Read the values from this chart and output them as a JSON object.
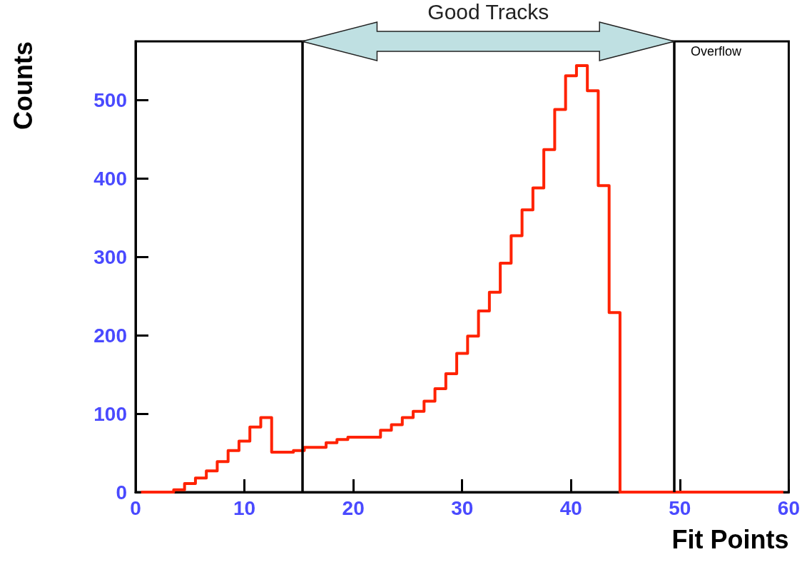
{
  "chart_data": {
    "type": "histogram",
    "xlabel": "Fit Points",
    "ylabel": "Counts",
    "bins": [
      0.5,
      1.5,
      2.5,
      3.5,
      4.5,
      5.5,
      6.5,
      7.5,
      8.5,
      9.5,
      10.5,
      11.5,
      12.5,
      13.5,
      14.5,
      15.5,
      16.5,
      17.5,
      18.5,
      19.5,
      20.5,
      21.5,
      22.5,
      23.5,
      24.5,
      25.5,
      26.5,
      27.5,
      28.5,
      29.5,
      30.5,
      31.5,
      32.5,
      33.5,
      34.5,
      35.5,
      36.5,
      37.5,
      38.5,
      39.5,
      40.5,
      41.5,
      42.5,
      43.5,
      44.5,
      45.5,
      46.5,
      47.5,
      48.5,
      49.5,
      50.5,
      51.5,
      52.5,
      53.5,
      54.5,
      55.5,
      56.5,
      57.5,
      58.5,
      59.5
    ],
    "values": [
      0,
      0,
      0,
      3,
      11,
      18,
      27,
      39,
      53,
      65,
      83,
      95,
      51,
      51,
      53,
      57,
      57,
      63,
      67,
      70,
      70,
      70,
      79,
      86,
      95,
      103,
      116,
      132,
      151,
      177,
      199,
      231,
      255,
      292,
      327,
      360,
      388,
      437,
      488,
      531,
      544,
      512,
      391,
      229,
      0,
      0,
      0,
      0,
      0,
      0,
      0,
      0,
      0,
      0,
      0,
      0,
      0,
      0,
      0
    ],
    "color": "#ff2200",
    "xlim": [
      0,
      60
    ],
    "xticks": [
      0,
      10,
      20,
      30,
      40,
      50,
      60
    ],
    "ylim": [
      0,
      575
    ],
    "yticks": [
      0,
      100,
      200,
      300,
      400,
      500
    ],
    "grid": false,
    "ref_lines": [
      {
        "axis": "x",
        "value": 15.3,
        "color": "#000000"
      },
      {
        "axis": "x",
        "value": 49.5,
        "color": "#000000"
      }
    ],
    "annotations": [
      "Good Tracks",
      "Overflow"
    ]
  }
}
